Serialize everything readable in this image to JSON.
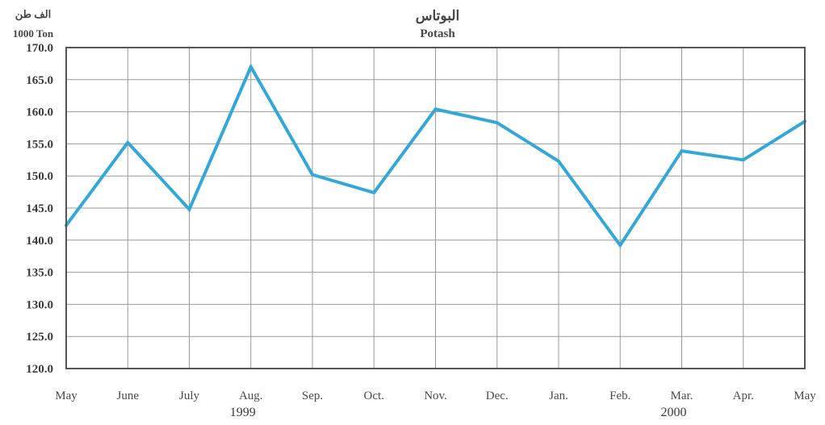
{
  "chart_data": {
    "type": "line",
    "title_ar": "البوتاس",
    "title": "Potash",
    "unit_ar": "الف طن",
    "ylabel": "1000 Ton",
    "categories": [
      "May",
      "June",
      "July",
      "Aug.",
      "Sep.",
      "Oct.",
      "Nov.",
      "Dec.",
      "Jan.",
      "Feb.",
      "Mar.",
      "Apr.",
      "May"
    ],
    "series": [
      {
        "values": [
          142.3,
          155.2,
          144.8,
          167.0,
          150.2,
          147.4,
          160.4,
          158.3,
          152.3,
          139.2,
          153.9,
          152.5,
          158.5
        ]
      }
    ],
    "years": [
      {
        "label": "1999",
        "under_index": 3
      },
      {
        "label": "2000",
        "under_index": 10
      }
    ],
    "ylim": [
      120.0,
      170.0
    ],
    "yticks": [
      "170.0",
      "165.0",
      "160.0",
      "155.0",
      "150.0",
      "145.0",
      "140.0",
      "135.0",
      "130.0",
      "125.0",
      "120.0"
    ],
    "grid": true,
    "line_color": "#33a8d8",
    "grid_color": "#9a9a9a",
    "frame_color": "#555555"
  }
}
